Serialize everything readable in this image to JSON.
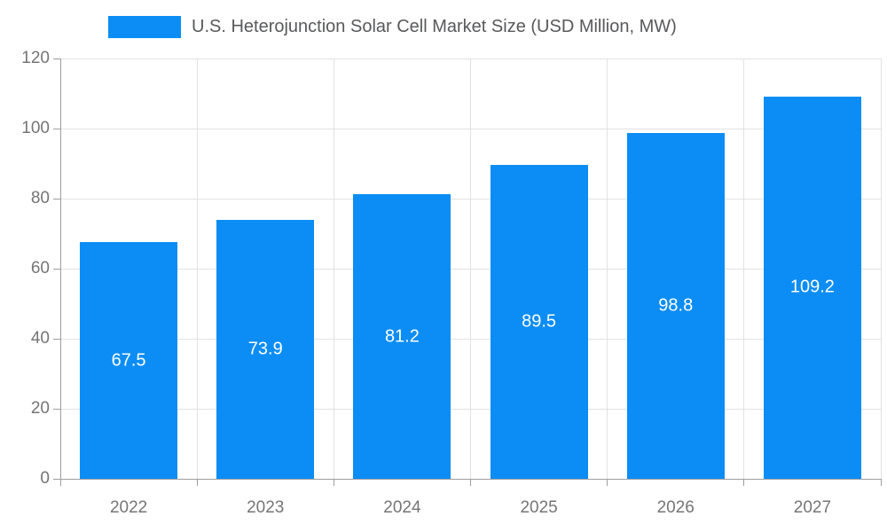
{
  "legend": {
    "label": "U.S. Heterojunction Solar Cell Market Size (USD Million, MW)",
    "swatch_color": "#0b8df5"
  },
  "chart_data": {
    "type": "bar",
    "title": "U.S. Heterojunction Solar Cell Market Size (USD Million, MW)",
    "categories": [
      "2022",
      "2023",
      "2024",
      "2025",
      "2026",
      "2027"
    ],
    "values": [
      67.5,
      73.9,
      81.2,
      89.5,
      98.8,
      109.2
    ],
    "value_labels": [
      "67.5",
      "73.9",
      "81.2",
      "89.5",
      "98.8",
      "109.2"
    ],
    "xlabel": "",
    "ylabel": "",
    "ylim": [
      0,
      120
    ],
    "yticks": [
      0,
      20,
      40,
      60,
      80,
      100,
      120
    ],
    "ytick_labels": [
      "0",
      "20",
      "40",
      "60",
      "80",
      "100",
      "120"
    ],
    "grid": true,
    "legend_position": "top",
    "bar_color": "#0b8df5",
    "bar_label_color": "#ffffff",
    "gridline_color": "#e2e2e2",
    "axis_line_color": "#9e9e9e",
    "axis_text_color": "#757575",
    "title_text_color": "#58595b"
  }
}
